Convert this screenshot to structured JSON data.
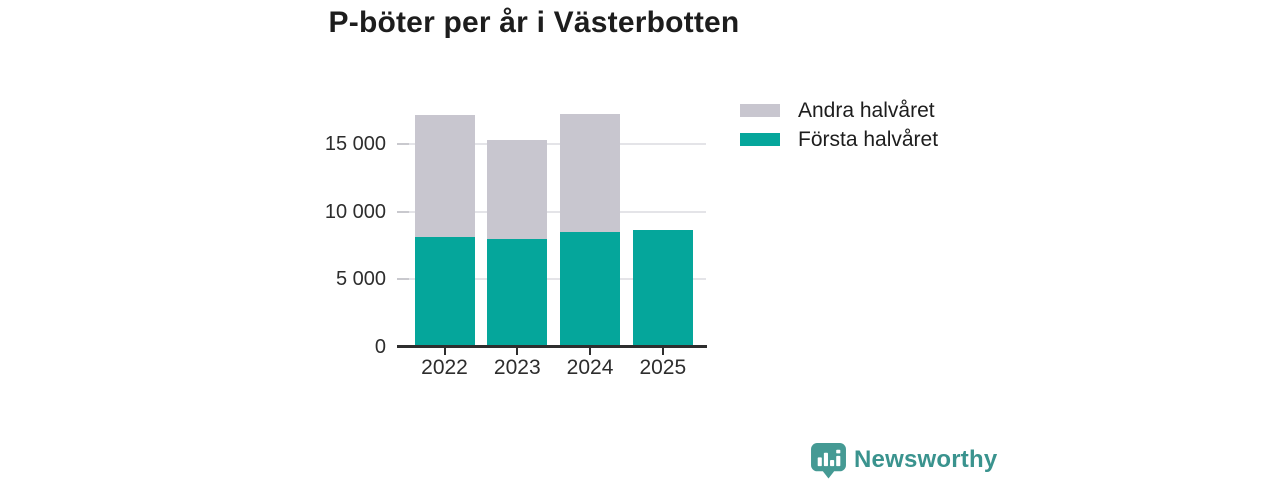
{
  "chart_data": {
    "type": "bar",
    "stacked": true,
    "title": "P-böter per år i Västerbotten",
    "categories": [
      "2022",
      "2023",
      "2024",
      "2025"
    ],
    "series": [
      {
        "name": "Första halvåret",
        "color": "#05a69b",
        "values": [
          8100,
          7950,
          8500,
          8650
        ]
      },
      {
        "name": "Andra halvåret",
        "color": "#c8c6cf",
        "values": [
          9050,
          7350,
          8700,
          0
        ]
      }
    ],
    "totals": [
      17150,
      15300,
      17200,
      8650
    ],
    "legend": {
      "position": "top-right",
      "entries": [
        {
          "label": "Andra halvåret",
          "color": "#c8c6cf"
        },
        {
          "label": "Första halvåret",
          "color": "#05a69b"
        }
      ]
    },
    "xlabel": "",
    "ylabel": "",
    "ylim": [
      0,
      17500
    ],
    "yticks": [
      {
        "value": 0,
        "label": "0"
      },
      {
        "value": 5000,
        "label": "5 000"
      },
      {
        "value": 10000,
        "label": "10 000"
      },
      {
        "value": 15000,
        "label": "15 000"
      }
    ],
    "grid": "horizontal",
    "colors": {
      "axis": "#2e2e2e",
      "gridline": "#e4e4e8",
      "tick_stub": "#c9c9ce",
      "text": "#2d2d2d",
      "title": "#1d1d1d"
    }
  },
  "branding": {
    "logo_text": "Newsworthy",
    "logo_text_color": "#3a938e",
    "logo_icon_color": "#459a94",
    "logo_icon": "speech-bubble-bar-chart-icon"
  }
}
